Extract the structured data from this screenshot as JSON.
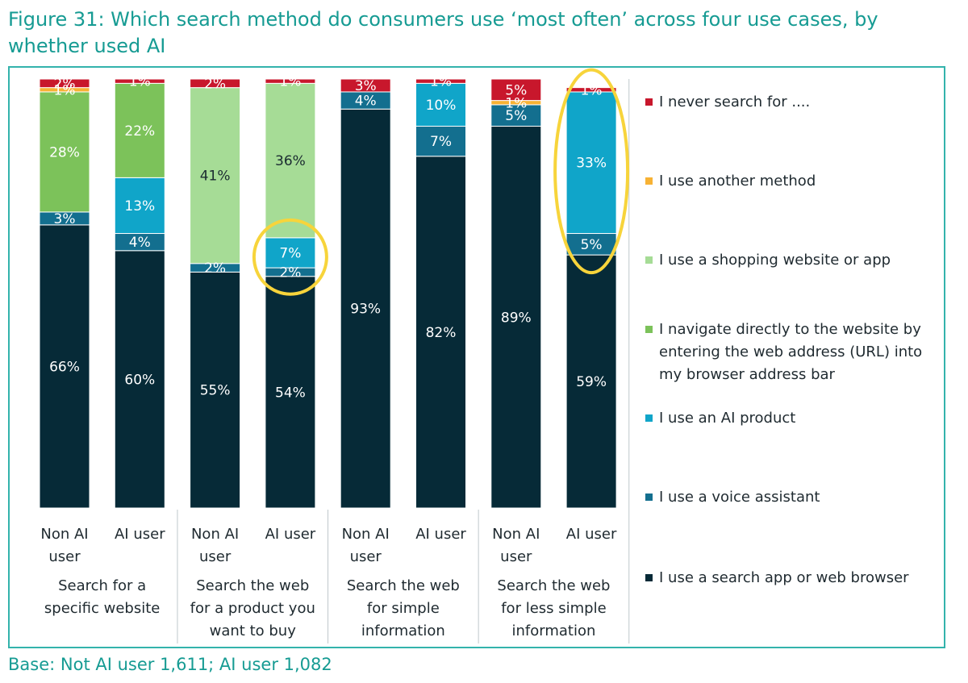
{
  "title": "Figure 31: Which search method do consumers use ‘most often’ across four use cases, by whether used AI",
  "base_note": "Base: Not AI user 1,611; AI user 1,082",
  "chart_data": {
    "type": "bar",
    "stacked": true,
    "percent_stacked": true,
    "ylim": [
      0,
      100
    ],
    "grid": false,
    "legend_position": "right",
    "groups": [
      {
        "label": "Search for a specific website",
        "bars": [
          "Non AI user",
          "AI user"
        ]
      },
      {
        "label": "Search the web for a product you want to buy",
        "bars": [
          "Non AI user",
          "AI user"
        ]
      },
      {
        "label": "Search the web for simple information",
        "bars": [
          "Non AI user",
          "AI user"
        ]
      },
      {
        "label": "Search the web for less simple information",
        "bars": [
          "Non AI user",
          "AI user"
        ]
      }
    ],
    "categories": [
      "Non AI user",
      "AI user",
      "Non AI user",
      "AI user",
      "Non AI user",
      "AI user",
      "Non AI user",
      "AI user"
    ],
    "series": [
      {
        "name": "I use a search app or web browser",
        "color": "#062a37",
        "label_color": "#ffffff",
        "values": [
          66,
          60,
          55,
          54,
          93,
          82,
          89,
          59
        ],
        "labels": [
          "66%",
          "60%",
          "55%",
          "54%",
          "93%",
          "82%",
          "89%",
          "59%"
        ]
      },
      {
        "name": "I use a voice assistant",
        "color": "#136f8f",
        "label_color": "#ffffff",
        "values": [
          3,
          4,
          2,
          2,
          4,
          7,
          5,
          5
        ],
        "labels": [
          "3%",
          "4%",
          "2%",
          "2%",
          "4%",
          "7%",
          "5%",
          "5%"
        ]
      },
      {
        "name": "I use an AI product",
        "color": "#10a5c9",
        "label_color": "#ffffff",
        "values": [
          0,
          13,
          0,
          7,
          0,
          10,
          0,
          33
        ],
        "labels": [
          "",
          "13%",
          "",
          "7%",
          "",
          "10%",
          "",
          "33%"
        ]
      },
      {
        "name": "I navigate directly to the website by entering the web address (URL) into my browser address bar",
        "color": "#7cc25a",
        "label_color": "#ffffff",
        "values": [
          28,
          22,
          0,
          0,
          0,
          0,
          0,
          0
        ],
        "labels": [
          "28%",
          "22%",
          "",
          "",
          "",
          "",
          "",
          ""
        ]
      },
      {
        "name": "I use a shopping website or app",
        "color": "#a6dc96",
        "label_color": "#1a2a30",
        "values": [
          0,
          0,
          41,
          36,
          0,
          0,
          0,
          0
        ],
        "labels": [
          "",
          "",
          "41%",
          "36%",
          "",
          "",
          "",
          ""
        ]
      },
      {
        "name": "I use another method",
        "color": "#f7b234",
        "label_color": "#ffffff",
        "values": [
          1,
          0,
          0,
          0,
          0,
          0,
          1,
          0
        ],
        "labels": [
          "1%",
          "",
          "",
          "",
          "",
          "",
          "1%",
          ""
        ]
      },
      {
        "name": "I never search for ....",
        "color": "#c8172c",
        "label_color": "#ffffff",
        "values": [
          2,
          1,
          2,
          1,
          3,
          1,
          5,
          1
        ],
        "labels": [
          "2%",
          "1%",
          "2%",
          "1%",
          "3%",
          "1%",
          "5%",
          "1%"
        ]
      }
    ],
    "highlights": [
      {
        "bar_index": 3,
        "series": [
          "I use an AI product",
          "I use a voice assistant"
        ]
      },
      {
        "bar_index": 7,
        "series": [
          "I use an AI product",
          "I use a voice assistant",
          "I never search for ...."
        ]
      }
    ]
  }
}
